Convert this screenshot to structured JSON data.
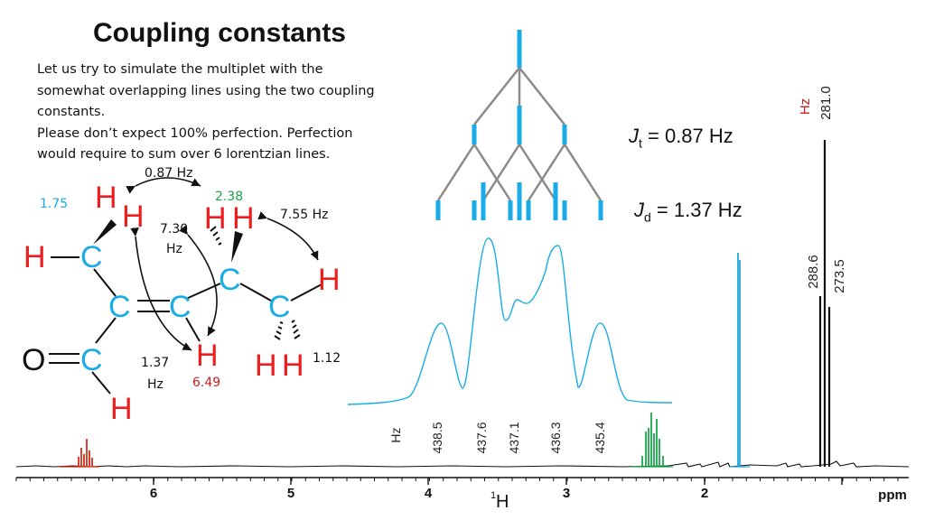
{
  "slide": {
    "title": "Coupling constants",
    "description_lines": [
      "Let us try to simulate the multiplet with the",
      "somewhat overlapping lines using the two coupling",
      "constants.",
      "Please don’t expect 100% perfection. Perfection",
      "would require to sum over 6 lorentzian lines."
    ]
  },
  "couplings": {
    "jt": {
      "symbol": "J",
      "sub": "t",
      "value": " = 0.87 Hz"
    },
    "jd": {
      "symbol": "J",
      "sub": "d",
      "value": " = 1.37 Hz"
    }
  },
  "molecule": {
    "atom_H": "H",
    "atom_C": "C",
    "atom_O": "O",
    "shift_1": "1.75",
    "shift_2": "2.38",
    "shift_3": "6.49",
    "shift_4": "1.12",
    "coupling_087": "0.87 Hz",
    "coupling_755": "7.55 Hz",
    "coupling_730": "7.30",
    "coupling_730_unit": "Hz",
    "coupling_137": "1.37",
    "coupling_137_unit": "Hz"
  },
  "multiplet": {
    "hz_label": "Hz",
    "tick_labels": [
      "438.5",
      "437.6",
      "437.1",
      "436.3",
      "435.4"
    ]
  },
  "spectrum": {
    "x_ticks": [
      "6",
      "5",
      "4",
      "3",
      "2"
    ],
    "x_unit": "ppm",
    "x_nucleus": "1",
    "x_nucleus_sym": "H",
    "hz_label": "Hz",
    "hz_labels": [
      "281.0",
      "288.6",
      "273.5"
    ]
  },
  "colors": {
    "red": "#ee1c1c",
    "blue": "#1aace6",
    "green": "#1ea04a",
    "dark_red": "#c82020",
    "spectrum_red": "#d62d1a",
    "spectrum_green": "#19a84a",
    "spectrum_blue": "#27a5d8",
    "tree_gray": "#8a8a8a"
  }
}
